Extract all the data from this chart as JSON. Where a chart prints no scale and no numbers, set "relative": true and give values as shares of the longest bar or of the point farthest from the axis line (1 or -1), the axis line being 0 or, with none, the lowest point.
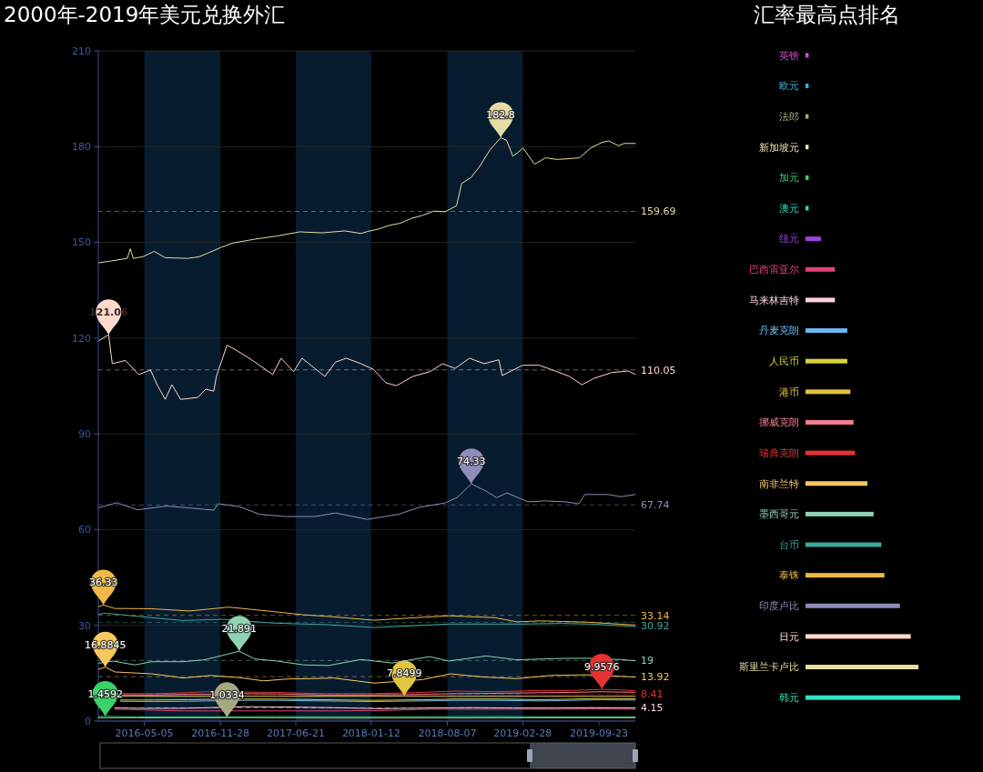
{
  "chart_data": [
    {
      "type": "line",
      "title": "2000年-2019年美元兑换外汇",
      "xlim": [
        "2016-01-01",
        "2019-12-31"
      ],
      "xticks": [
        "2016-05-05",
        "2016-11-28",
        "2017-06-21",
        "2018-01-12",
        "2018-08-07",
        "2019-02-28",
        "2019-09-23"
      ],
      "ylim": [
        0,
        210
      ],
      "yticks": [
        0,
        30,
        60,
        90,
        120,
        150,
        180,
        210
      ],
      "grid": "y",
      "bands": [
        {
          "axis": "x",
          "from": "2016-05-05",
          "to": "2016-11-28",
          "color": "#081c30"
        },
        {
          "axis": "x",
          "from": "2017-06-21",
          "to": "2018-01-12",
          "color": "#081c30"
        },
        {
          "axis": "x",
          "from": "2018-08-07",
          "to": "2019-02-28",
          "color": "#081c30"
        }
      ],
      "ref_lines": [
        {
          "axis": "y",
          "value": 159.69,
          "label": "159.69",
          "color": "#e6dba5",
          "line_style": "dashed"
        },
        {
          "axis": "y",
          "value": 110.05,
          "label": "110.05",
          "color": "#ffd8cc",
          "line_style": "dashed"
        },
        {
          "axis": "y",
          "value": 67.74,
          "label": "67.74",
          "color": "#8e8cb8",
          "line_style": "dashed"
        },
        {
          "axis": "y",
          "value": 33.14,
          "label": "33.14",
          "color": "#f0b848",
          "line_style": "dashed"
        },
        {
          "axis": "y",
          "value": 30.92,
          "label": "30.92",
          "color": "#3fa99b",
          "line_style": "dashed"
        },
        {
          "axis": "y",
          "value": 19,
          "label": "19",
          "color": "#8fd3b5",
          "line_style": "dashed"
        },
        {
          "axis": "y",
          "value": 13.92,
          "label": "13.92",
          "color": "#f8c860",
          "line_style": "dashed"
        },
        {
          "axis": "y",
          "value": 8.41,
          "label": "8.41",
          "color": "#e63232",
          "line_style": "dashed"
        },
        {
          "axis": "y",
          "value": 4.15,
          "label": "4.15",
          "color": "#ffd1dc",
          "line_style": "dashed"
        }
      ],
      "annotations": [
        {
          "text": "182.8",
          "x": "2018-12-30",
          "y": 182.8
        },
        {
          "text": "121.06",
          "x": "2016-01-29",
          "y": 121.06
        },
        {
          "text": "74.33",
          "x": "2018-10-11",
          "y": 74.33
        },
        {
          "text": "36.33",
          "x": "2016-01-15",
          "y": 36.33
        },
        {
          "text": "21.891",
          "x": "2017-01-18",
          "y": 21.891
        },
        {
          "text": "16.8845",
          "x": "2016-01-20",
          "y": 16.8845
        },
        {
          "text": "1.4592",
          "x": "2016-01-20",
          "y": 1.4592
        },
        {
          "text": "7.8499",
          "x": "2018-04-12",
          "y": 7.8499
        },
        {
          "text": "1.0334",
          "x": "2016-12-16",
          "y": 1.0334
        },
        {
          "text": "9.9576",
          "x": "2019-10-01",
          "y": 9.9576
        }
      ],
      "series": [
        {
          "color": "#a4a883",
          "x": [
            "2016-01-01",
            "2016-04-15",
            "2016-12-16",
            "2017-05-01",
            "2017-09-10",
            "2018-03-15",
            "2018-12-25",
            "2019-06-01",
            "2019-12-31"
          ],
          "values": [
            1,
            1,
            1.0334,
            1,
            0.9,
            0.9,
            1,
            1,
            1
          ]
        },
        {
          "color": "#3ad36a",
          "x": [
            "2016-01-01",
            "2016-01-20",
            "2016-04-15",
            "2016-10-01",
            "2017-05-01",
            "2017-09-10",
            "2018-03-15",
            "2018-12-25",
            "2019-06-01",
            "2019-12-31"
          ],
          "values": [
            1.4,
            1.4592,
            1.3,
            1.3,
            1.4,
            1.3,
            1.3,
            1.4,
            1.3,
            1.3
          ]
        },
        {
          "color": "#e0457b",
          "x": [
            "2016-02-15",
            "2016-05-01",
            "2016-08-15",
            "2016-10-25",
            "2017-02-01",
            "2017-06-01",
            "2017-10-01",
            "2018-02-01",
            "2018-06-15",
            "2018-10-15",
            "2019-02-01",
            "2019-06-01",
            "2019-09-01",
            "2019-12-31"
          ],
          "values": [
            3.7,
            3.5,
            3.2,
            3.2,
            3.2,
            3.2,
            3.2,
            3.3,
            3.7,
            3.7,
            3.7,
            3.7,
            3.8,
            3.7
          ]
        },
        {
          "color": "#ffd1dc",
          "x": [
            "2016-02-15",
            "2016-05-01",
            "2016-08-15",
            "2016-10-25",
            "2017-02-01",
            "2017-06-01",
            "2017-10-01",
            "2018-02-01",
            "2018-06-15",
            "2018-10-15",
            "2019-02-01",
            "2019-06-01",
            "2019-09-01",
            "2019-12-31"
          ],
          "values": [
            4.1,
            4,
            4,
            4.2,
            4.5,
            4.4,
            4.2,
            3.9,
            4.1,
            4.2,
            4.1,
            4.1,
            4.2,
            4.1
          ]
        },
        {
          "color": "#6ab8f0",
          "x": [
            "2016-03-01",
            "2016-06-01",
            "2016-09-01",
            "2016-10-20",
            "2017-02-01",
            "2017-05-01",
            "2017-09-01",
            "2018-01-15",
            "2018-06-01",
            "2018-09-01",
            "2018-12-20",
            "2019-04-15",
            "2019-07-15",
            "2019-10-01",
            "2019-11-15",
            "2019-12-31"
          ],
          "values": [
            6.2,
            6.1,
            6.2,
            6.3,
            6.5,
            6.5,
            6.3,
            6.1,
            6.3,
            6.5,
            6.5,
            6.3,
            6.5,
            6.7,
            6.6,
            6.6
          ]
        },
        {
          "color": "#d4d43a",
          "x": [
            "2016-03-01",
            "2016-06-01",
            "2016-09-01",
            "2016-10-20",
            "2017-02-01",
            "2017-05-01",
            "2017-09-01",
            "2018-01-15",
            "2018-06-01",
            "2018-09-01",
            "2018-12-20",
            "2019-04-15",
            "2019-07-15",
            "2019-10-01",
            "2019-11-15",
            "2019-12-31"
          ],
          "values": [
            6.6,
            6.6,
            6.7,
            6.8,
            6.9,
            6.9,
            6.7,
            6.5,
            6.7,
            6.9,
            6.9,
            6.7,
            6.9,
            7.1,
            7,
            7
          ]
        },
        {
          "color": "#e0c540",
          "x": [
            "2016-03-01",
            "2016-10-20",
            "2017-05-01",
            "2018-01-15",
            "2018-04-12",
            "2018-09-01",
            "2019-04-15",
            "2019-12-31"
          ],
          "values": [
            7.8,
            7.8,
            7.8,
            7.8,
            7.8499,
            7.8,
            7.8,
            7.8
          ]
        },
        {
          "color": "#f47e96",
          "x": [
            "2016-03-01",
            "2016-06-01",
            "2016-09-01",
            "2016-10-20",
            "2017-02-01",
            "2017-05-01",
            "2017-09-01",
            "2018-01-15",
            "2018-06-01",
            "2018-09-01",
            "2018-12-20",
            "2019-04-15",
            "2019-07-15",
            "2019-10-01",
            "2019-11-15",
            "2019-12-31"
          ],
          "values": [
            8.2,
            8.2,
            8.4,
            8.4,
            8.6,
            8.5,
            8.2,
            8.2,
            8.4,
            8.6,
            8.7,
            8.9,
            9,
            9.2,
            9.1,
            9
          ]
        },
        {
          "color": "#e63232",
          "x": [
            "2016-03-01",
            "2016-06-01",
            "2016-09-01",
            "2016-10-20",
            "2017-02-01",
            "2017-05-01",
            "2017-09-01",
            "2018-01-15",
            "2018-06-01",
            "2018-09-01",
            "2018-12-20",
            "2019-04-15",
            "2019-07-15",
            "2019-10-01",
            "2019-11-15",
            "2019-12-31"
          ],
          "values": [
            8.6,
            8.6,
            8.9,
            9.2,
            9.1,
            9,
            8.6,
            8.6,
            9,
            9.4,
            9.2,
            9.6,
            9.6,
            9.9576,
            9.8,
            9.5
          ]
        },
        {
          "color": "#f8c860",
          "x": [
            "2016-01-01",
            "2016-01-20",
            "2016-02-15",
            "2016-05-24",
            "2016-07-01",
            "2016-08-18",
            "2016-11-01",
            "2017-01-20",
            "2017-03-25",
            "2017-06-01",
            "2017-08-01",
            "2017-10-01",
            "2018-01-20",
            "2018-06-01",
            "2018-08-15",
            "2018-11-15",
            "2019-02-12",
            "2019-05-15",
            "2019-08-21",
            "2019-12-31"
          ],
          "values": [
            16.2,
            16.8845,
            15.4,
            14.8,
            14.3,
            13.5,
            14.3,
            13.6,
            12.6,
            13.2,
            13.3,
            13.5,
            11.9,
            13,
            14.8,
            13.8,
            13.3,
            14.3,
            14.5,
            13.8
          ]
        },
        {
          "color": "#8fd3b5",
          "x": [
            "2016-01-01",
            "2016-02-10",
            "2016-04-10",
            "2016-05-24",
            "2016-08-18",
            "2016-10-15",
            "2016-12-01",
            "2017-01-18",
            "2017-03-01",
            "2017-05-01",
            "2017-07-12",
            "2017-09-17",
            "2017-12-15",
            "2018-03-10",
            "2018-06-20",
            "2018-08-11",
            "2018-11-20",
            "2019-02-12",
            "2019-06-01",
            "2019-08-21",
            "2019-11-20",
            "2019-12-31"
          ],
          "values": [
            18.1,
            18.8,
            17.6,
            18.6,
            18.6,
            19.2,
            20.5,
            21.891,
            19.5,
            18.8,
            17.6,
            17.4,
            19.3,
            18.2,
            20.2,
            18.8,
            20.4,
            19.2,
            19.6,
            19.7,
            19.3,
            18.9
          ]
        },
        {
          "color": "#3fa99b",
          "x": [
            "2016-01-01",
            "2016-01-22",
            "2016-05-24",
            "2016-08-18",
            "2016-12-01",
            "2017-04-22",
            "2017-09-17",
            "2018-01-20",
            "2018-08-11",
            "2019-02-12",
            "2019-06-15",
            "2019-09-01",
            "2019-12-31"
          ],
          "values": [
            33.5,
            33.8,
            32.4,
            31.5,
            31.9,
            30.7,
            30.2,
            29.3,
            30.4,
            30.4,
            30.6,
            30.4,
            29.6
          ]
        },
        {
          "color": "#f0b848",
          "x": [
            "2016-01-01",
            "2016-01-15",
            "2016-02-15",
            "2016-05-24",
            "2016-09-05",
            "2016-12-21",
            "2017-04-22",
            "2017-07-12",
            "2017-09-17",
            "2018-01-20",
            "2018-04-13",
            "2018-08-11",
            "2018-12-14",
            "2019-02-12",
            "2019-04-18",
            "2019-08-21",
            "2019-12-31"
          ],
          "values": [
            35.8,
            36.33,
            35.3,
            35.2,
            34.5,
            35.7,
            34.3,
            33.3,
            32.8,
            31.6,
            32.2,
            33,
            32.4,
            31.1,
            31.4,
            31,
            30.1
          ]
        },
        {
          "color": "#8e8cb8",
          "x": [
            "2016-01-01",
            "2016-02-20",
            "2016-04-17",
            "2016-07-05",
            "2016-11-10",
            "2016-11-22",
            "2017-01-18",
            "2017-03-15",
            "2017-05-23",
            "2017-08-12",
            "2017-10-07",
            "2018-01-01",
            "2018-03-27",
            "2018-05-23",
            "2018-07-30",
            "2018-09-02",
            "2018-10-11",
            "2018-11-21",
            "2018-12-19",
            "2019-01-16",
            "2019-03-14",
            "2019-04-29",
            "2019-06-25",
            "2019-07-30",
            "2019-08-16",
            "2019-10-18",
            "2019-11-22",
            "2019-12-31"
          ],
          "values": [
            66.8,
            68.4,
            66.2,
            67.4,
            66.1,
            68.1,
            67.2,
            64.8,
            64.1,
            64.1,
            65.2,
            63.2,
            64.8,
            67,
            68.3,
            70,
            74.33,
            72,
            70,
            71.5,
            68.7,
            69,
            68.7,
            68.1,
            71,
            71,
            70.3,
            71
          ]
        },
        {
          "color": "#ffd8cc",
          "x": [
            "2016-01-01",
            "2016-01-29",
            "2016-02-08",
            "2016-03-15",
            "2016-04-20",
            "2016-05-22",
            "2016-06-09",
            "2016-07-01",
            "2016-07-19",
            "2016-08-12",
            "2016-09-27",
            "2016-10-19",
            "2016-11-10",
            "2016-11-17",
            "2016-12-16",
            "2017-01-06",
            "2017-02-21",
            "2017-04-19",
            "2017-05-12",
            "2017-06-15",
            "2017-07-08",
            "2017-09-08",
            "2017-10-07",
            "2017-11-05",
            "2017-12-15",
            "2018-01-18",
            "2018-02-21",
            "2018-03-22",
            "2018-05-05",
            "2018-06-21",
            "2018-07-25",
            "2018-08-28",
            "2018-10-06",
            "2018-11-15",
            "2018-12-25",
            "2019-01-03",
            "2019-02-28",
            "2019-04-14",
            "2019-06-01",
            "2019-07-05",
            "2019-08-08",
            "2019-09-10",
            "2019-10-27",
            "2019-12-12",
            "2019-12-31"
          ],
          "values": [
            119.1,
            121.06,
            112,
            113,
            108.6,
            110,
            105.4,
            100.8,
            105.4,
            100.8,
            101.4,
            104,
            103.4,
            108,
            117.8,
            116.5,
            113.2,
            108.6,
            113.7,
            109.5,
            113.7,
            108,
            112.5,
            113.7,
            112,
            110.2,
            106,
            105.1,
            108,
            109.5,
            112,
            110.5,
            113.7,
            112,
            113.2,
            108.3,
            111.5,
            111.5,
            109.5,
            108,
            105.4,
            107.4,
            109.2,
            109.7,
            108.6
          ]
        },
        {
          "color": "#e6dba5",
          "x": [
            "2016-01-01",
            "2016-02-01",
            "2016-03-20",
            "2016-03-28",
            "2016-04-05",
            "2016-05-01",
            "2016-06-01",
            "2016-07-01",
            "2016-09-01",
            "2016-10-01",
            "2016-11-01",
            "2016-12-01",
            "2017-01-01",
            "2017-03-01",
            "2017-05-01",
            "2017-07-01",
            "2017-09-01",
            "2017-11-01",
            "2017-12-15",
            "2018-01-01",
            "2018-02-01",
            "2018-03-01",
            "2018-04-01",
            "2018-05-01",
            "2018-06-01",
            "2018-07-01",
            "2018-08-01",
            "2018-09-01",
            "2018-09-15",
            "2018-10-10",
            "2018-11-01",
            "2018-12-01",
            "2018-12-30",
            "2019-01-15",
            "2019-02-01",
            "2019-02-15",
            "2019-03-01",
            "2019-04-01",
            "2019-05-01",
            "2019-06-01",
            "2019-07-01",
            "2019-08-01",
            "2019-09-01",
            "2019-10-01",
            "2019-10-20",
            "2019-11-15",
            "2019-12-01",
            "2019-12-31"
          ],
          "values": [
            143.6,
            144.1,
            145,
            148,
            145,
            145.5,
            147.2,
            145.2,
            145,
            145.5,
            147,
            148.5,
            149.8,
            151,
            152,
            153.3,
            153,
            153.6,
            152.8,
            153.4,
            154.2,
            155.3,
            156,
            157.5,
            158.5,
            159.8,
            159.6,
            161.5,
            168.5,
            170.3,
            173.5,
            179,
            182.8,
            182,
            177,
            178.2,
            179.6,
            174.5,
            176.5,
            176,
            176.2,
            176.5,
            179.6,
            181.3,
            181.8,
            180.3,
            181,
            181
          ]
        }
      ]
    },
    {
      "type": "bar",
      "title": "汇率最高点排名",
      "orientation": "horizontal",
      "relative": true,
      "categories": [
        "英镑",
        "欧元",
        "法郎",
        "新加坡元",
        "加元",
        "澳元",
        "纽元",
        "巴西雷亚尔",
        "马来林吉特",
        "丹麦克朗",
        "人民币",
        "港币",
        "挪威克朗",
        "瑞典克朗",
        "南非兰特",
        "墨西哥元",
        "台币",
        "泰铢",
        "印度卢比",
        "日元",
        "斯里兰卡卢比",
        "韩元"
      ],
      "values": [
        0.02,
        0.02,
        0.02,
        0.02,
        0.02,
        0.02,
        0.1,
        0.19,
        0.19,
        0.27,
        0.27,
        0.29,
        0.31,
        0.32,
        0.4,
        0.44,
        0.49,
        0.51,
        0.61,
        0.68,
        0.73,
        1
      ],
      "colors": [
        "#d94fd9",
        "#3fb5d9",
        "#a4a883",
        "#f0e4a8",
        "#3ad36a",
        "#2fd8c0",
        "#9b45e0",
        "#e0457b",
        "#ffd1dc",
        "#6ab8f0",
        "#d4d43a",
        "#e0c540",
        "#f47e96",
        "#e63232",
        "#f8c860",
        "#8fd3b5",
        "#3fa99b",
        "#f0b848",
        "#8e8cb8",
        "#ffd8cc",
        "#e6dba5",
        "#2ee6c0"
      ]
    }
  ]
}
